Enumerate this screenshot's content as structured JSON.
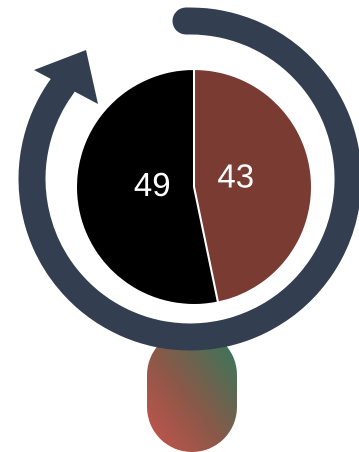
{
  "chart_data": {
    "type": "pie",
    "title": "",
    "slices": [
      {
        "label": "",
        "value": 43,
        "display": "43",
        "color": "#7a3b32"
      },
      {
        "label": "",
        "value": 49,
        "display": "49",
        "color": "#000000"
      }
    ]
  },
  "colors": {
    "ring": "#333f50",
    "handle_top": "#2e7a5d",
    "handle_bottom": "#c8534b",
    "slice_border": "#ffffff"
  },
  "icons": {
    "ring": "circular-arrow-icon",
    "handle": "handle-icon"
  }
}
